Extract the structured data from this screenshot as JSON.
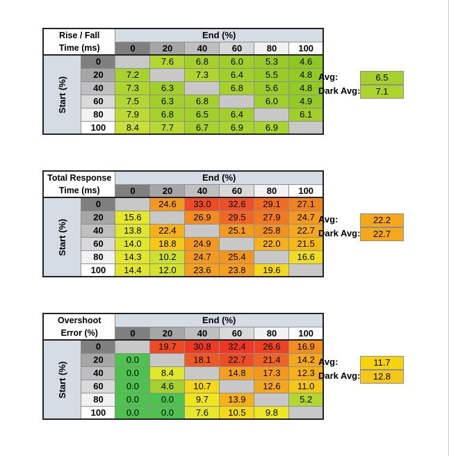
{
  "tables": [
    {
      "title_line1": "Rise / Fall",
      "title_line2": "Time (ms)",
      "end_label": "End (%)",
      "start_label": "Start (%)",
      "columns": [
        "0",
        "20",
        "40",
        "60",
        "80",
        "100"
      ],
      "rows": [
        {
          "start": "0",
          "cells": [
            "",
            "7.6",
            "6.8",
            "6.0",
            "5.3",
            "4.6"
          ]
        },
        {
          "start": "20",
          "cells": [
            "7.2",
            "",
            "7.3",
            "6.4",
            "5.5",
            "4.8"
          ]
        },
        {
          "start": "40",
          "cells": [
            "7.3",
            "6.3",
            "",
            "6.8",
            "5.6",
            "4.8"
          ]
        },
        {
          "start": "60",
          "cells": [
            "7.5",
            "6.3",
            "6.8",
            "",
            "6.0",
            "4.9"
          ]
        },
        {
          "start": "80",
          "cells": [
            "7.9",
            "6.8",
            "6.5",
            "6.4",
            "",
            "6.1"
          ]
        },
        {
          "start": "100",
          "cells": [
            "8.4",
            "7.7",
            "6.7",
            "6.9",
            "6.9",
            ""
          ]
        }
      ],
      "colors": [
        [
          "#c8c8c8",
          "#b3d630",
          "#a6d12c",
          "#a0ce2a",
          "#98cb28",
          "#8fc825"
        ],
        [
          "#a7d22c",
          "#c8c8c8",
          "#b0d52e",
          "#a3cf2b",
          "#9acc28",
          "#93ca26"
        ],
        [
          "#afd42e",
          "#a3cf2b",
          "#c8c8c8",
          "#a6d12c",
          "#9bcc29",
          "#93ca26"
        ],
        [
          "#b3d630",
          "#a3cf2b",
          "#a6d12c",
          "#c8c8c8",
          "#a0ce2a",
          "#94ca27"
        ],
        [
          "#bcda32",
          "#a6d12c",
          "#a4d02b",
          "#a3cf2b",
          "#c8c8c8",
          "#a1ce2a"
        ],
        [
          "#c8df35",
          "#b9d831",
          "#a7d22c",
          "#a9d32d",
          "#a9d32d",
          "#c8c8c8"
        ]
      ],
      "avg_label": "Avg:",
      "avg_value": "6.5",
      "avg_color": "#a6d12c",
      "dark_avg_label": "Dark Avg:",
      "dark_avg_value": "7.1",
      "dark_avg_color": "#aed42e"
    },
    {
      "title_line1": "Total Response",
      "title_line2": "Time (ms)",
      "end_label": "End (%)",
      "start_label": "Start (%)",
      "columns": [
        "0",
        "20",
        "40",
        "60",
        "80",
        "100"
      ],
      "rows": [
        {
          "start": "0",
          "cells": [
            "",
            "24.6",
            "33.0",
            "32.6",
            "29.1",
            "27.1"
          ]
        },
        {
          "start": "20",
          "cells": [
            "15.6",
            "",
            "26.9",
            "29.5",
            "27.9",
            "24.7"
          ]
        },
        {
          "start": "40",
          "cells": [
            "13.8",
            "22.4",
            "",
            "25.1",
            "25.8",
            "22.7"
          ]
        },
        {
          "start": "60",
          "cells": [
            "14.0",
            "18.8",
            "24.9",
            "",
            "22.0",
            "21.5"
          ]
        },
        {
          "start": "80",
          "cells": [
            "14.3",
            "10.2",
            "24.7",
            "25.4",
            "",
            "16.6"
          ]
        },
        {
          "start": "100",
          "cells": [
            "14.4",
            "12.0",
            "23.6",
            "23.8",
            "19.6",
            ""
          ]
        }
      ],
      "colors": [
        [
          "#c8c8c8",
          "#f39a1e",
          "#ee4b24",
          "#ee4f24",
          "#f06c21",
          "#f1831f"
        ],
        [
          "#e8e82a",
          "#c8c8c8",
          "#f28e20",
          "#f06622",
          "#f17a20",
          "#f39a1e"
        ],
        [
          "#dfe62c",
          "#f5b01a",
          "#c8c8c8",
          "#f39a1e",
          "#f3931f",
          "#f5a81b"
        ],
        [
          "#e0e62c",
          "#f5c818",
          "#f39a1e",
          "#c8c8c8",
          "#f5b21a",
          "#f5b81a"
        ],
        [
          "#e1e62b",
          "#cde030",
          "#f39a1e",
          "#f3961e",
          "#c8c8c8",
          "#eedd22"
        ],
        [
          "#e2e62b",
          "#d5e32e",
          "#f4a21d",
          "#f4a01d",
          "#f5d818",
          "#c8c8c8"
        ]
      ],
      "avg_label": "Avg:",
      "avg_value": "22.2",
      "avg_color": "#f5a81b",
      "dark_avg_label": "Dark Avg:",
      "dark_avg_value": "22.7",
      "dark_avg_color": "#f5a81b"
    },
    {
      "title_line1": "Overshoot",
      "title_line2": "Error (%)",
      "end_label": "End (%)",
      "start_label": "Start (%)",
      "columns": [
        "0",
        "20",
        "40",
        "60",
        "80",
        "100"
      ],
      "rows": [
        {
          "start": "0",
          "cells": [
            "",
            "19.7",
            "30.8",
            "32.4",
            "26.6",
            "16.9"
          ]
        },
        {
          "start": "20",
          "cells": [
            "0.0",
            "",
            "18.1",
            "22.7",
            "21.4",
            "14.2"
          ]
        },
        {
          "start": "40",
          "cells": [
            "0.0",
            "8.4",
            "",
            "14.8",
            "17.3",
            "12.3"
          ]
        },
        {
          "start": "60",
          "cells": [
            "0.0",
            "4.6",
            "10.7",
            "",
            "12.6",
            "11.0"
          ]
        },
        {
          "start": "80",
          "cells": [
            "0.0",
            "0.0",
            "9.7",
            "13.9",
            "",
            "5.2"
          ]
        },
        {
          "start": "100",
          "cells": [
            "0.0",
            "0.0",
            "7.6",
            "10.5",
            "9.8",
            ""
          ]
        }
      ],
      "colors": [
        [
          "#c8c8c8",
          "#ee4b24",
          "#ee3a24",
          "#ee3824",
          "#ee4224",
          "#f28e20"
        ],
        [
          "#4dc24f",
          "#c8c8c8",
          "#ee5a23",
          "#ee4d24",
          "#f06423",
          "#f5a81b"
        ],
        [
          "#4dc24f",
          "#dfe62c",
          "#c8c8c8",
          "#f5a01d",
          "#f39a1e",
          "#f5b01a"
        ],
        [
          "#4dc24f",
          "#a6d12c",
          "#f5d818",
          "#c8c8c8",
          "#f5a81b",
          "#f5c818"
        ],
        [
          "#4dc24f",
          "#4dc24f",
          "#eee622",
          "#f5b01a",
          "#c8c8c8",
          "#b3d630"
        ],
        [
          "#4dc24f",
          "#4dc24f",
          "#e6e62a",
          "#f5d818",
          "#eee622",
          "#c8c8c8"
        ]
      ],
      "avg_label": "Avg:",
      "avg_value": "11.7",
      "avg_color": "#f5d30e",
      "dark_avg_label": "Dark Avg:",
      "dark_avg_value": "12.8",
      "dark_avg_color": "#f5c818"
    }
  ]
}
